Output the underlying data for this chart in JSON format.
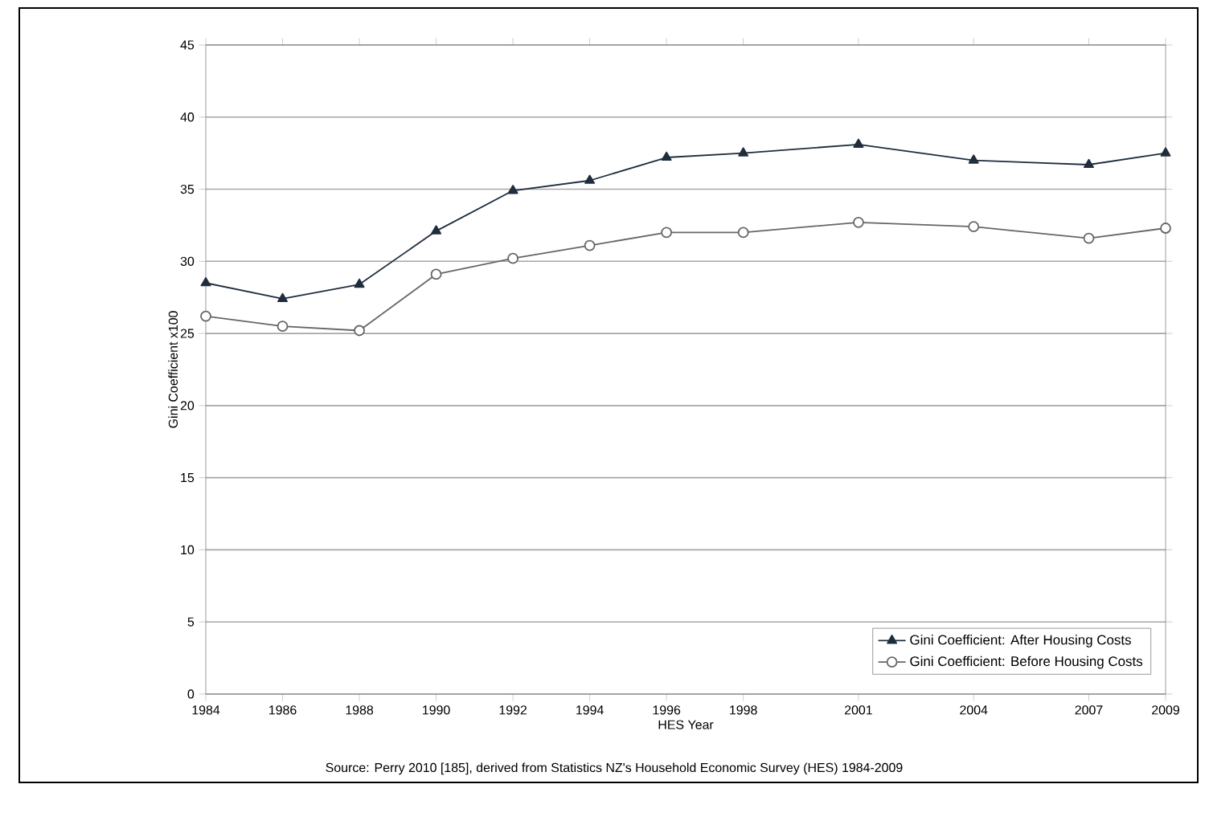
{
  "chart_data": {
    "type": "line",
    "xlabel": "HES Year",
    "ylabel": "Gini Coefficient x100",
    "annotations": [
      "Source: Perry 2010 [185], derived from Statistics NZ's Household Economic Survey (HES) 1984-2009"
    ],
    "x": [
      1984,
      1986,
      1988,
      1990,
      1992,
      1994,
      1996,
      1998,
      2001,
      2004,
      2007,
      2009
    ],
    "series": [
      {
        "name": "Gini Coefficient: After Housing Costs",
        "color": "#1f2d3d",
        "marker": "triangle",
        "values": [
          28.5,
          27.4,
          28.4,
          32.1,
          34.9,
          35.6,
          37.2,
          37.5,
          38.1,
          37.0,
          36.7,
          37.5
        ]
      },
      {
        "name": "Gini Coefficient: Before Housing Costs",
        "color": "#666666",
        "marker": "circle",
        "values": [
          26.2,
          25.5,
          25.2,
          29.1,
          30.2,
          31.1,
          32.0,
          32.0,
          32.7,
          32.4,
          31.6,
          32.3
        ]
      }
    ],
    "xlim": [
      1984,
      2009
    ],
    "xticks": [
      1984,
      1986,
      1988,
      1990,
      1992,
      1994,
      1996,
      1998,
      2001,
      2004,
      2007,
      2009
    ],
    "ylim": [
      0,
      45
    ],
    "yticks": [
      0,
      5,
      10,
      15,
      20,
      25,
      30,
      35,
      40,
      45
    ],
    "grid": "y",
    "legend": "bottom right",
    "line_style": "solid"
  }
}
